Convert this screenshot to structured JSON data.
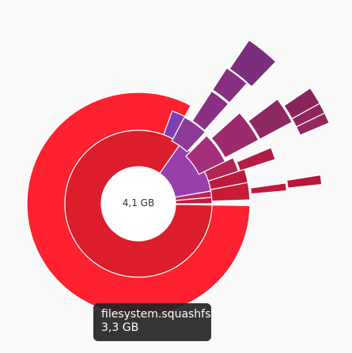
{
  "chart": {
    "center_label": "4,1 GB",
    "colors": {
      "red_outer": "#fe2130",
      "red_inner": "#dc1d2c",
      "crimson": "#c0183a",
      "magenta": "#a22a6e",
      "purple": "#8a2f82",
      "violet": "#7b3fb0"
    }
  },
  "tooltip": {
    "name": "filesystem.squashfs",
    "size": "3,3 GB"
  }
}
